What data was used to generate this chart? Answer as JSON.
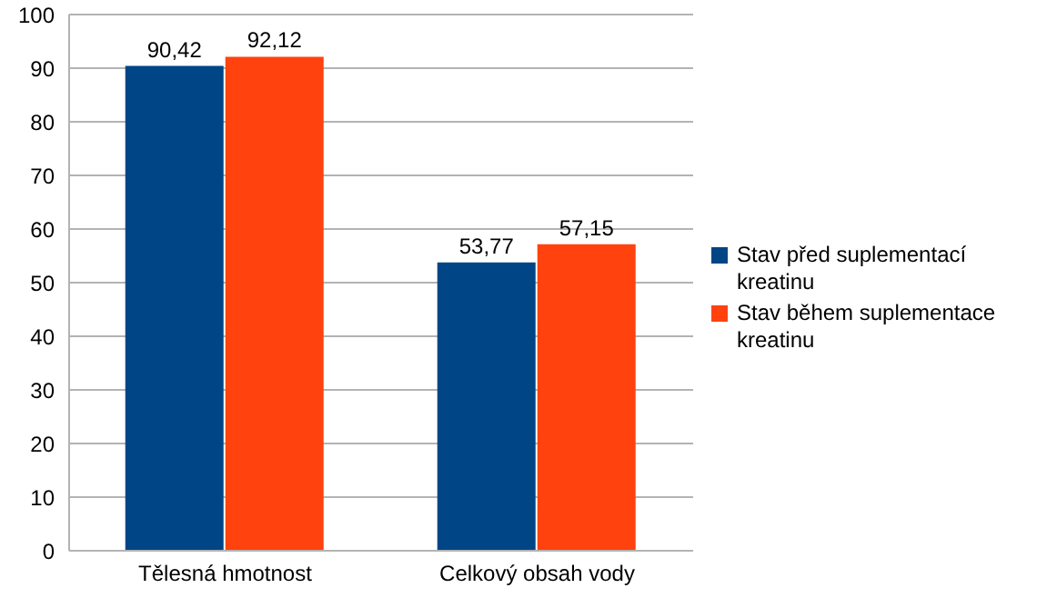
{
  "chart_data": {
    "type": "bar",
    "categories": [
      "Tělesná hmotnost",
      "Celkový obsah vody"
    ],
    "series": [
      {
        "name": "Stav před suplementací kreatinu",
        "color": "#004586",
        "values": [
          90.42,
          53.77
        ],
        "value_labels": [
          "90,42",
          "53,77"
        ]
      },
      {
        "name": "Stav během suplementace kreatinu",
        "color": "#ff420e",
        "values": [
          92.12,
          57.15
        ],
        "value_labels": [
          "92,12",
          "57,15"
        ]
      }
    ],
    "ylim": [
      0,
      100
    ],
    "yticks": [
      0,
      10,
      20,
      30,
      40,
      50,
      60,
      70,
      80,
      90,
      100
    ],
    "grid": "y",
    "legend": "right"
  }
}
